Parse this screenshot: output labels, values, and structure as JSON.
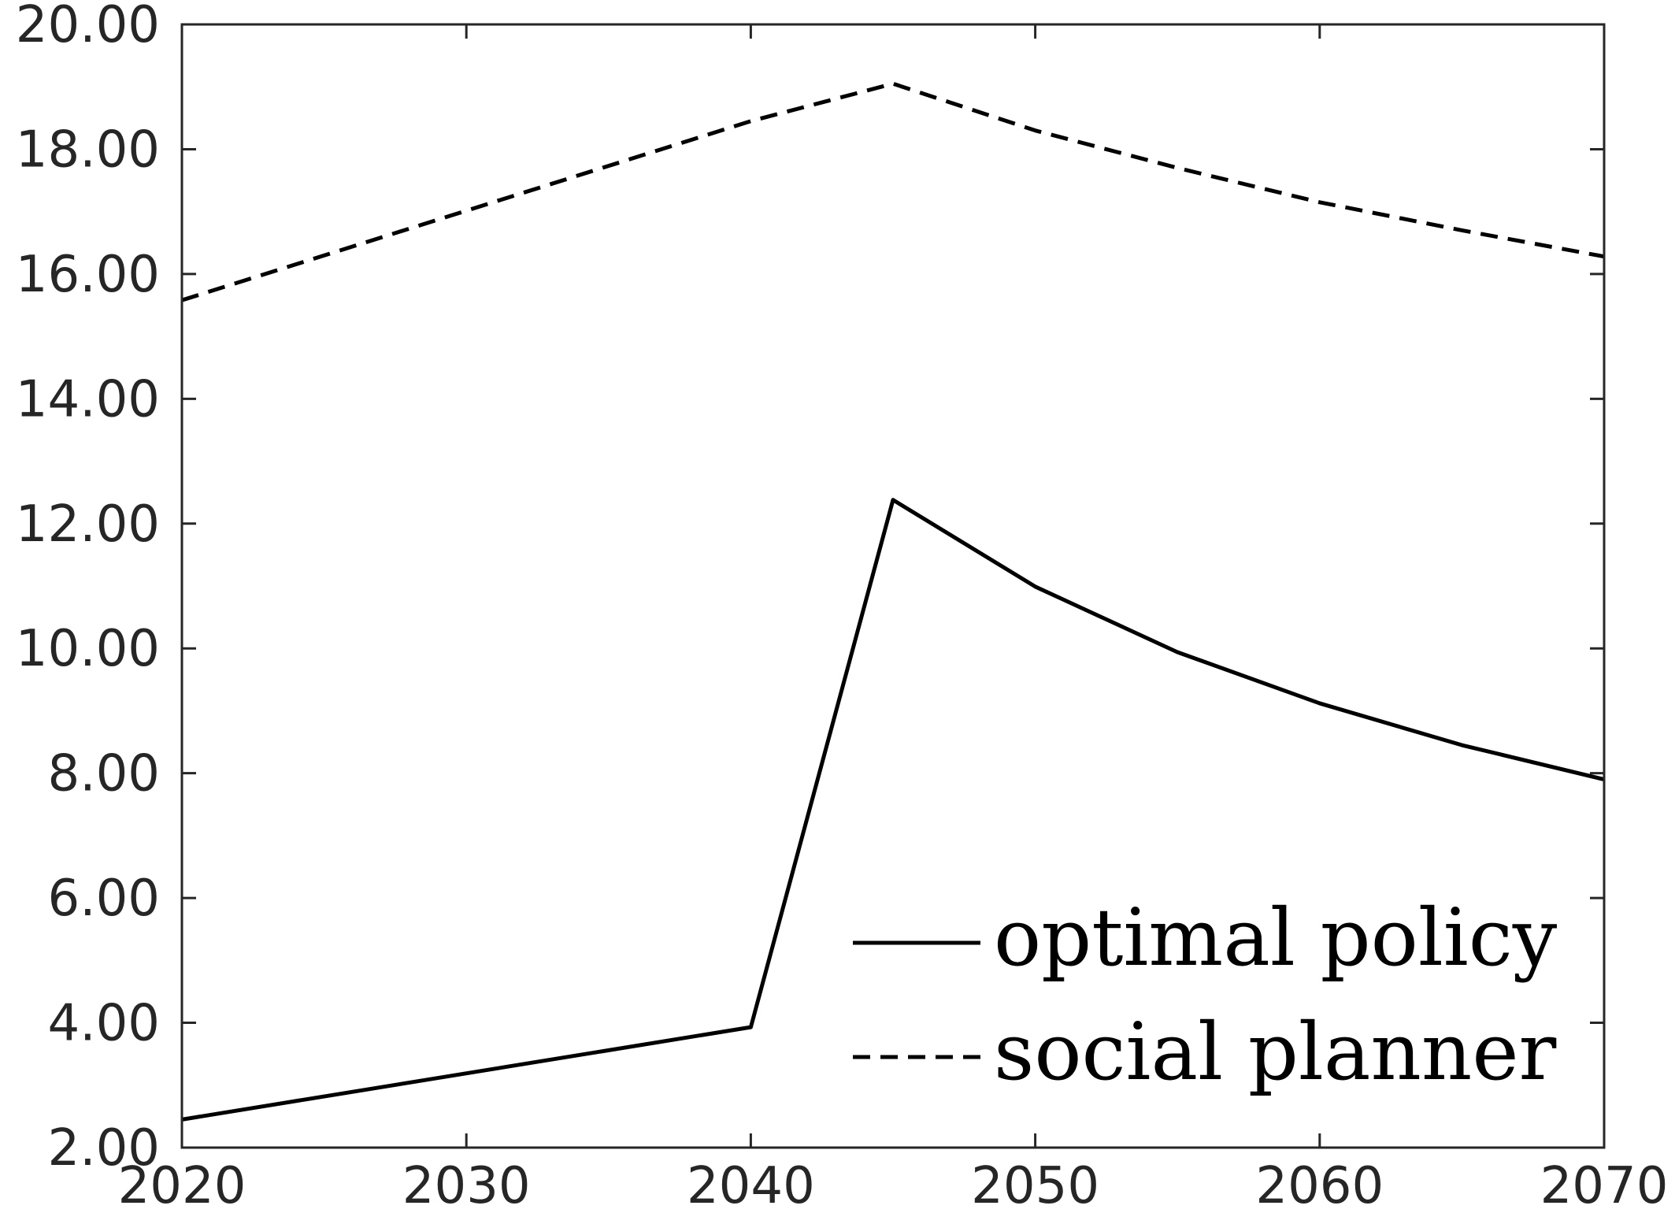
{
  "chart_data": {
    "type": "line",
    "title": "",
    "xlabel": "",
    "ylabel": "",
    "x": [
      2020,
      2040,
      2045,
      2050,
      2055,
      2060,
      2065,
      2070
    ],
    "xlim": [
      2020,
      2070
    ],
    "ylim": [
      2,
      20
    ],
    "x_ticks": [
      2020,
      2030,
      2040,
      2050,
      2060,
      2070
    ],
    "x_tick_labels": [
      "2020",
      "2030",
      "2040",
      "2050",
      "2060",
      "2070"
    ],
    "y_ticks": [
      2,
      4,
      6,
      8,
      10,
      12,
      14,
      16,
      18,
      20
    ],
    "y_tick_labels": [
      "2.00",
      "4.00",
      "6.00",
      "8.00",
      "10.00",
      "12.00",
      "14.00",
      "16.00",
      "18.00",
      "20.00"
    ],
    "grid": false,
    "legend_position": "bottom-right",
    "series": [
      {
        "name": "optimal policy",
        "style": "solid",
        "color": "#000000",
        "values": [
          2.45,
          3.93,
          12.38,
          10.99,
          9.94,
          9.12,
          8.45,
          7.9
        ]
      },
      {
        "name": "social planner",
        "style": "dashed",
        "color": "#000000",
        "values": [
          15.58,
          18.45,
          19.05,
          18.3,
          17.7,
          17.15,
          16.7,
          16.28
        ]
      }
    ]
  }
}
